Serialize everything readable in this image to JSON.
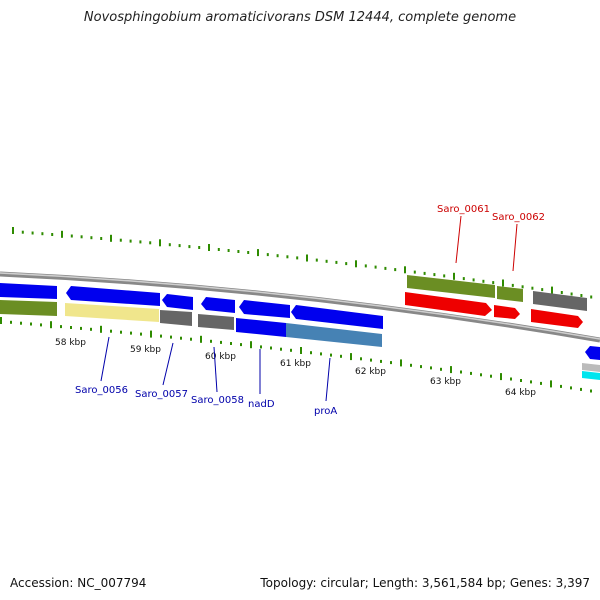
{
  "title": "Novosphingobium aromaticivorans DSM 12444, complete genome",
  "footer": {
    "accession": "Accession: NC_007794",
    "topology": "Topology: circular; Length: 3,561,584 bp; Genes: 3,397"
  },
  "colors": {
    "cds_blue": "#0000ee",
    "cds_red": "#ee0000",
    "cds_green": "#6b8e23",
    "cds_gray": "#666666",
    "cds_yellow": "#f0e68c",
    "cds_steel": "#4682b4",
    "cds_cyan": "#00e5ee",
    "backbone": "#888888",
    "tick": "#2e8b00",
    "label_forward": "#cc0000",
    "label_reverse": "#0000aa"
  },
  "ticks": {
    "labels": [
      "58 kbp",
      "59 kbp",
      "60 kbp",
      "61 kbp",
      "62 kbp",
      "63 kbp",
      "64 kbp"
    ]
  },
  "genes": {
    "labels": [
      {
        "id": "saro-0061",
        "text": "Saro_0061",
        "strand": "forward"
      },
      {
        "id": "saro-0062",
        "text": "Saro_0062",
        "strand": "forward"
      },
      {
        "id": "saro-0056",
        "text": "Saro_0056",
        "strand": "reverse"
      },
      {
        "id": "saro-0057",
        "text": "Saro_0057",
        "strand": "reverse"
      },
      {
        "id": "saro-0058",
        "text": "Saro_0058",
        "strand": "reverse"
      },
      {
        "id": "nadd",
        "text": "nadD",
        "strand": "reverse"
      },
      {
        "id": "proa",
        "text": "proA",
        "strand": "reverse"
      }
    ]
  }
}
